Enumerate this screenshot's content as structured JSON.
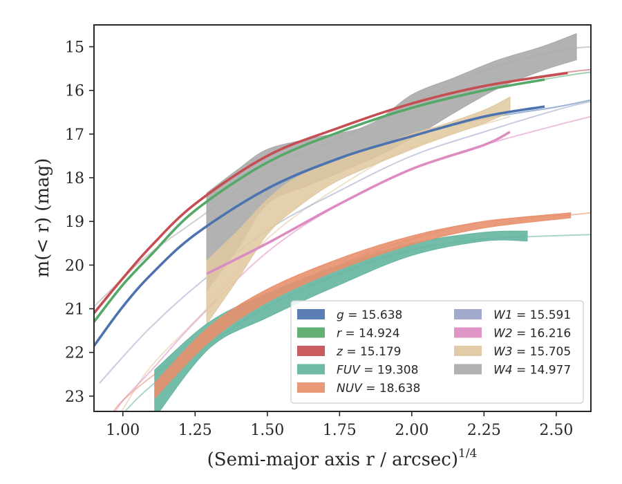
{
  "chart_data": {
    "type": "line",
    "xlabel": "(Semi-major axis r / arcsec)",
    "xlabel_exponent": "1/4",
    "ylabel": "m(< r) (mag)",
    "xlim": [
      0.9,
      2.62
    ],
    "ylim": [
      23.35,
      14.5
    ],
    "x_ticks": [
      {
        "value": 1.0,
        "label": "1.00"
      },
      {
        "value": 1.25,
        "label": "1.25"
      },
      {
        "value": 1.5,
        "label": "1.50"
      },
      {
        "value": 1.75,
        "label": "1.75"
      },
      {
        "value": 2.0,
        "label": "2.00"
      },
      {
        "value": 2.25,
        "label": "2.25"
      },
      {
        "value": 2.5,
        "label": "2.50"
      }
    ],
    "y_ticks": [
      {
        "value": 15,
        "label": "15"
      },
      {
        "value": 16,
        "label": "16"
      },
      {
        "value": 17,
        "label": "17"
      },
      {
        "value": 18,
        "label": "18"
      },
      {
        "value": 19,
        "label": "19"
      },
      {
        "value": 20,
        "label": "20"
      },
      {
        "value": 21,
        "label": "21"
      },
      {
        "value": 22,
        "label": "22"
      },
      {
        "value": 23,
        "label": "23"
      }
    ],
    "legend_location": "lower right",
    "series": [
      {
        "key": "g",
        "legend_var": "g",
        "legend_value": "= 15.638",
        "color": "#4c72b0",
        "thin": [
          [
            0.9,
            21.85
          ],
          [
            1.0,
            20.95
          ],
          [
            1.1,
            20.2
          ],
          [
            1.25,
            19.3
          ],
          [
            1.5,
            18.25
          ],
          [
            1.75,
            17.55
          ],
          [
            2.0,
            17.05
          ],
          [
            2.25,
            16.65
          ],
          [
            2.5,
            16.38
          ],
          [
            2.62,
            16.22
          ]
        ],
        "band": [
          [
            0.9,
            21.85,
            21.85
          ],
          [
            1.0,
            20.95,
            20.95
          ],
          [
            1.1,
            20.2,
            20.2
          ],
          [
            1.25,
            19.3,
            19.3
          ],
          [
            1.5,
            18.25,
            18.25
          ],
          [
            1.75,
            17.55,
            17.55
          ],
          [
            2.0,
            17.05,
            17.05
          ],
          [
            2.25,
            16.6,
            16.6
          ],
          [
            2.46,
            16.37,
            16.37
          ]
        ]
      },
      {
        "key": "r",
        "legend_var": "r",
        "legend_value": "= 14.924",
        "color": "#55a868",
        "thin": [
          [
            0.9,
            21.3
          ],
          [
            1.0,
            20.45
          ],
          [
            1.1,
            19.75
          ],
          [
            1.25,
            18.75
          ],
          [
            1.5,
            17.65
          ],
          [
            1.75,
            16.95
          ],
          [
            2.0,
            16.4
          ],
          [
            2.25,
            16.0
          ],
          [
            2.5,
            15.7
          ],
          [
            2.62,
            15.58
          ]
        ],
        "band": [
          [
            0.9,
            21.3,
            21.3
          ],
          [
            1.0,
            20.45,
            20.45
          ],
          [
            1.1,
            19.75,
            19.75
          ],
          [
            1.25,
            18.75,
            18.75
          ],
          [
            1.5,
            17.65,
            17.65
          ],
          [
            1.75,
            16.95,
            16.95
          ],
          [
            2.0,
            16.4,
            16.4
          ],
          [
            2.25,
            16.0,
            16.0
          ],
          [
            2.46,
            15.75,
            15.75
          ]
        ]
      },
      {
        "key": "z",
        "legend_var": "z",
        "legend_value": "= 15.179",
        "color": "#c44e52",
        "thin": [
          [
            0.9,
            21.1
          ],
          [
            1.0,
            20.3
          ],
          [
            1.1,
            19.55
          ],
          [
            1.25,
            18.6
          ],
          [
            1.5,
            17.5
          ],
          [
            1.75,
            16.85
          ],
          [
            2.0,
            16.3
          ],
          [
            2.25,
            15.9
          ],
          [
            2.5,
            15.62
          ],
          [
            2.62,
            15.52
          ]
        ],
        "band": [
          [
            0.9,
            21.1,
            21.1
          ],
          [
            1.0,
            20.3,
            20.3
          ],
          [
            1.1,
            19.55,
            19.55
          ],
          [
            1.25,
            18.6,
            18.6
          ],
          [
            1.5,
            17.5,
            17.5
          ],
          [
            1.75,
            16.85,
            16.85
          ],
          [
            2.0,
            16.3,
            16.3
          ],
          [
            2.25,
            15.9,
            15.9
          ],
          [
            2.54,
            15.6,
            15.6
          ]
        ]
      },
      {
        "key": "FUV",
        "legend_var": "FUV",
        "legend_value": "= 19.308",
        "color": "#64b5a0",
        "thin": [
          [
            0.95,
            23.8
          ],
          [
            1.0,
            23.4
          ],
          [
            1.11,
            22.7
          ],
          [
            1.3,
            21.8
          ],
          [
            1.5,
            20.95
          ],
          [
            1.75,
            20.2
          ],
          [
            2.0,
            19.65
          ],
          [
            2.25,
            19.4
          ],
          [
            2.4,
            19.35
          ],
          [
            2.62,
            19.3
          ]
        ],
        "band": [
          [
            1.11,
            22.4,
            23.5
          ],
          [
            1.3,
            21.3,
            21.9
          ],
          [
            1.5,
            20.65,
            21.2
          ],
          [
            1.75,
            20.0,
            20.45
          ],
          [
            2.0,
            19.5,
            19.78
          ],
          [
            2.25,
            19.25,
            19.45
          ],
          [
            2.4,
            19.22,
            19.45
          ]
        ]
      },
      {
        "key": "NUV",
        "legend_var": "NUV",
        "legend_value": "= 18.638",
        "color": "#e8906d",
        "thin": [
          [
            0.95,
            23.5
          ],
          [
            1.0,
            23.1
          ],
          [
            1.11,
            22.5
          ],
          [
            1.3,
            21.6
          ],
          [
            1.5,
            20.8
          ],
          [
            1.75,
            20.0
          ],
          [
            2.0,
            19.4
          ],
          [
            2.25,
            19.0
          ],
          [
            2.55,
            18.85
          ],
          [
            2.62,
            18.8
          ]
        ],
        "band": [
          [
            1.11,
            22.7,
            23.05
          ],
          [
            1.3,
            21.4,
            21.75
          ],
          [
            1.5,
            20.55,
            20.85
          ],
          [
            1.75,
            19.85,
            20.1
          ],
          [
            2.0,
            19.33,
            19.53
          ],
          [
            2.25,
            19.0,
            19.15
          ],
          [
            2.55,
            18.8,
            18.92
          ]
        ]
      },
      {
        "key": "W1",
        "legend_var": "W1",
        "legend_value": "= 15.591",
        "color": "#99a3c9",
        "thin": [
          [
            0.92,
            22.7
          ],
          [
            1.0,
            22.1
          ],
          [
            1.1,
            21.4
          ],
          [
            1.25,
            20.5
          ],
          [
            1.5,
            19.2
          ],
          [
            1.75,
            18.3
          ],
          [
            2.0,
            17.5
          ],
          [
            2.25,
            16.95
          ],
          [
            2.5,
            16.45
          ],
          [
            2.62,
            16.25
          ]
        ],
        "band": []
      },
      {
        "key": "W2",
        "legend_var": "W2",
        "legend_value": "= 16.216",
        "color": "#dd8cc2",
        "thin": [
          [
            0.95,
            23.6
          ],
          [
            1.0,
            23.1
          ],
          [
            1.1,
            22.4
          ],
          [
            1.25,
            21.3
          ],
          [
            1.5,
            19.7
          ],
          [
            1.75,
            18.6
          ],
          [
            2.0,
            17.8
          ],
          [
            2.25,
            17.25
          ],
          [
            2.5,
            16.8
          ],
          [
            2.62,
            16.6
          ]
        ],
        "band": [
          [
            1.29,
            20.2,
            20.2
          ],
          [
            1.5,
            19.5,
            19.5
          ],
          [
            1.75,
            18.6,
            18.6
          ],
          [
            2.0,
            17.8,
            17.8
          ],
          [
            2.25,
            17.25,
            17.25
          ],
          [
            2.34,
            16.95,
            16.95
          ]
        ]
      },
      {
        "key": "W3",
        "legend_var": "W3",
        "legend_value": "= 15.705",
        "color": "#e0c8a0",
        "thin": [
          [
            0.95,
            23.8
          ],
          [
            1.0,
            23.3
          ],
          [
            1.1,
            22.3
          ],
          [
            1.29,
            21.0
          ],
          [
            1.5,
            19.4
          ],
          [
            1.75,
            18.2
          ],
          [
            2.0,
            17.3
          ],
          [
            2.34,
            16.6
          ]
        ],
        "band": [
          [
            1.29,
            19.9,
            21.35
          ],
          [
            1.4,
            19.2,
            20.3
          ],
          [
            1.5,
            18.5,
            19.3
          ],
          [
            1.6,
            18.0,
            18.7
          ],
          [
            1.75,
            17.6,
            18.05
          ],
          [
            2.0,
            17.0,
            17.35
          ],
          [
            2.1,
            16.8,
            17.1
          ],
          [
            2.25,
            16.45,
            16.75
          ],
          [
            2.34,
            16.15,
            16.5
          ]
        ]
      },
      {
        "key": "W4",
        "legend_var": "W4",
        "legend_value": "= 14.977",
        "color": "#aaaaaa",
        "thin": [
          [
            0.9,
            20.95
          ],
          [
            1.0,
            20.3
          ],
          [
            1.1,
            19.7
          ],
          [
            1.29,
            18.8
          ],
          [
            1.5,
            17.8
          ],
          [
            1.75,
            17.1
          ],
          [
            2.0,
            16.3
          ],
          [
            2.25,
            15.55
          ],
          [
            2.5,
            15.1
          ],
          [
            2.62,
            15.0
          ]
        ],
        "band": [
          [
            1.29,
            18.35,
            20.6
          ],
          [
            1.4,
            17.8,
            19.6
          ],
          [
            1.5,
            17.35,
            18.6
          ],
          [
            1.65,
            17.1,
            18.15
          ],
          [
            1.85,
            16.8,
            17.6
          ],
          [
            2.0,
            16.1,
            17.1
          ],
          [
            2.15,
            15.7,
            16.5
          ],
          [
            2.3,
            15.3,
            15.95
          ],
          [
            2.45,
            15.0,
            15.55
          ],
          [
            2.57,
            14.7,
            15.3
          ]
        ]
      }
    ],
    "legend_order": [
      "g",
      "r",
      "z",
      "FUV",
      "NUV",
      "W1",
      "W2",
      "W3",
      "W4"
    ]
  }
}
